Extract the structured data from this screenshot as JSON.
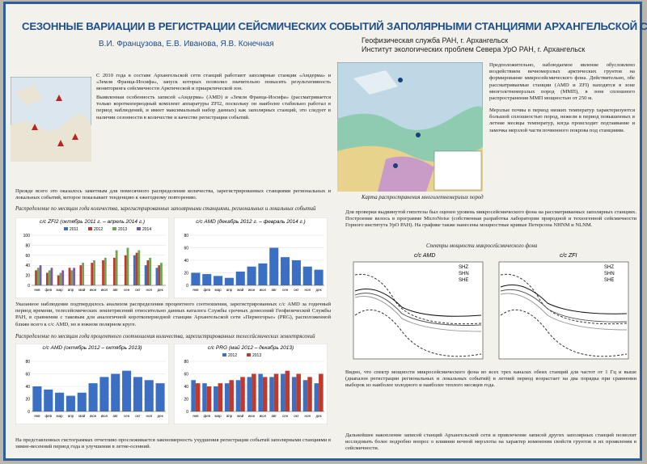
{
  "header": {
    "title": "СЕЗОННЫЕ ВАРИАЦИИ В РЕГИСТРАЦИИ СЕЙСМИЧЕСКИХ СОБЫТИЙ ЗАПОЛЯРНЫМИ СТАНЦИЯМИ АРХАНГЕЛЬСКОЙ СЕТИ",
    "authors": "В.И. Французова, Е.В. Иванова, Я.В. Конечная",
    "affiliations": [
      "Геофизическая служба РАН, г. Архангельск",
      "Институт экологических проблем Севера УрО РАН, г. Архангельск"
    ]
  },
  "texts": {
    "intro": "С 2010 года в составе Архангельской сети станций работают заполярные станции «Амдерма» и «Земля Франца-Иосифа», запуск которых позволил значительно повысить результативность мониторинга сейсмичности Арктической и приарктической зон.",
    "feature": "Выявленная особенность записей «Амдерма» (AMD) и «Земля Франца-Иосифа» (рассматривается только короткопериодный комплект аппаратуры ZFI2, поскольку он наиболее стабильно работал в период наблюдений, и имеет максимальный набор данных) как заполярных станций, это следует в наличии сезонности в количестве и качестве регистрации событий.",
    "monthly": "Прежде всего это оказалось заметным для помесячного распределения количества, зарегистрированных станциями региональных и локальных событий, которое показывает тенденцию к ежегодному повторению.",
    "caption1": "Распределение по месяцам года количества, зарегистрированных заполярными станциями, региональных и локальных событий",
    "percent": "Указанное наблюдение подтвердилось анализом распределения процентного соотношения, зарегистрированных с/с AMD за годичный период времени, телесейсмических землетрясений относительно данных каталога Службы срочных донесений Геофизической Службы РАН, в сравнении с таковым для аналогичной короткопериодной станции Архангельской сети «Пермогорье» (PRG), расположенной ближе всего к с/с AMD, но в южном полярном круге.",
    "caption2": "Распределение по месяцам года процентного соотношения количества, зарегистрированных телесейсмических землетрясений",
    "conclusion_left": "На представленных гистограммах отчетливо прослеживается закономерность ухудшения регистрации событий заполярными станциями в зимне-весенний период года и улучшения в летне-осенний.",
    "map_caption": "Карта распространения многолетнемерзлых пород",
    "permafrost1": "Предположительно, наблюдаемое явление обусловлено воздействием вечномерзлых арктических грунтов на формирование микросейсмического фона. Действительно, обе рассматриваемые станции (AMD и ZFI) находятся в зоне многолетнемерзлых пород (ММП), в зоне сплошного распространения ММП мощностью от 250 м.",
    "permafrost2": "Мерзлые почвы в период низких температур характеризуются большой сплошностью пород, нежели в период повышенных в летние месяцы температур, когда происходит подтаивание и замочка мерзлой части почвенного покрова под станциями.",
    "hypothesis": "Для проверки выдвинутой гипотезы был оценен уровень микросейсмического фона на рассматриваемых заполярных станциях. Построение велось в программе MicroNoise (собственная разработка лаборатории природной и техногенной сейсмичности Горного института УрО РАН). На графике также нанесены мощностные кривые Петерсона NHNM и NLNM.",
    "spectra_title": "Спектры мощности микросейсмического фона",
    "spectra_amd": "с/с AMD",
    "spectra_zfi": "с/с ZFI",
    "spectra_legend": [
      "SHZ",
      "SHN",
      "SHE"
    ],
    "result": "Видно, что спектр мощности микросейсмического фона во всех трех каналах обеих станций для частот от 1 Гц и выше (диапазон регистрации региональных и локальных событий) в летний период возрастает на два порядка при сравнении выборок из наиболее холодного и наиболее теплого месяцев года.",
    "final": "Дальнейшее накопление записей станций Архангельской сети и привлечение записей других заполярных станций позволит исследовать более подробно вопрос о влиянии вечной мерзлоты на характер изменения свойств грунтов и их проявления в сейсмичности."
  },
  "chart_data": [
    {
      "type": "bar",
      "title": "с/с ZFI2 (октябрь 2011 г. – апрель 2014 г.)",
      "categories": [
        "янв",
        "фев",
        "мар",
        "апр",
        "май",
        "июн",
        "июл",
        "авг",
        "сен",
        "окт",
        "ноя",
        "дек"
      ],
      "series": [
        {
          "name": "2011",
          "color": "#3b6fc4",
          "values": [
            null,
            null,
            null,
            null,
            null,
            null,
            null,
            null,
            null,
            60,
            40,
            35
          ]
        },
        {
          "name": "2012",
          "color": "#c0392b",
          "values": [
            30,
            25,
            20,
            35,
            40,
            45,
            50,
            55,
            60,
            65,
            50,
            40
          ]
        },
        {
          "name": "2013",
          "color": "#6aa84f",
          "values": [
            35,
            30,
            25,
            30,
            45,
            50,
            55,
            70,
            75,
            70,
            55,
            45
          ]
        },
        {
          "name": "2014",
          "color": "#7e57a8",
          "values": [
            40,
            35,
            30,
            35,
            null,
            null,
            null,
            null,
            null,
            null,
            null,
            null
          ]
        }
      ],
      "ylim": [
        0,
        100
      ],
      "yticks": [
        0,
        20,
        40,
        60,
        80,
        100
      ],
      "grid": true
    },
    {
      "type": "bar",
      "title": "с/с AMD (декабрь 2012 г. – февраль 2014 г.)",
      "categories": [
        "янв",
        "фев",
        "мар",
        "апр",
        "май",
        "июн",
        "июл",
        "авг",
        "сен",
        "окт",
        "ноя",
        "дек"
      ],
      "series": [
        {
          "name": "AMD",
          "color": "#3b6fc4",
          "values": [
            20,
            18,
            15,
            12,
            22,
            30,
            35,
            60,
            45,
            40,
            30,
            25
          ]
        }
      ],
      "ylim": [
        0,
        80
      ],
      "yticks": [
        0,
        20,
        40,
        60,
        80
      ],
      "grid": true
    },
    {
      "type": "bar",
      "title": "с/с AMD (октябрь 2012 – октябрь 2013)",
      "categories": [
        "янв",
        "фев",
        "мар",
        "апр",
        "май",
        "июн",
        "июл",
        "авг",
        "сен",
        "окт",
        "ноя",
        "дек"
      ],
      "series": [
        {
          "name": "AMD",
          "color": "#3b6fc4",
          "values": [
            40,
            35,
            30,
            25,
            30,
            45,
            55,
            60,
            65,
            55,
            50,
            45
          ]
        }
      ],
      "ylim": [
        0,
        80
      ],
      "yticks": [
        0,
        20,
        40,
        60,
        80
      ],
      "grid": true
    },
    {
      "type": "bar",
      "title": "с/с PRG (май 2012 – декабрь 2013)",
      "categories": [
        "янв",
        "фев",
        "мар",
        "апр",
        "май",
        "июн",
        "июл",
        "авг",
        "сен",
        "окт",
        "ноя",
        "дек"
      ],
      "series": [
        {
          "name": "2012",
          "color": "#3b6fc4",
          "values": [
            50,
            45,
            40,
            45,
            50,
            55,
            60,
            55,
            60,
            55,
            50,
            45
          ]
        },
        {
          "name": "2013",
          "color": "#c0392b",
          "values": [
            45,
            40,
            45,
            50,
            55,
            60,
            55,
            60,
            65,
            60,
            55,
            60
          ]
        }
      ],
      "ylim": [
        0,
        80
      ],
      "yticks": [
        0,
        20,
        40,
        60,
        80
      ],
      "grid": true
    }
  ]
}
